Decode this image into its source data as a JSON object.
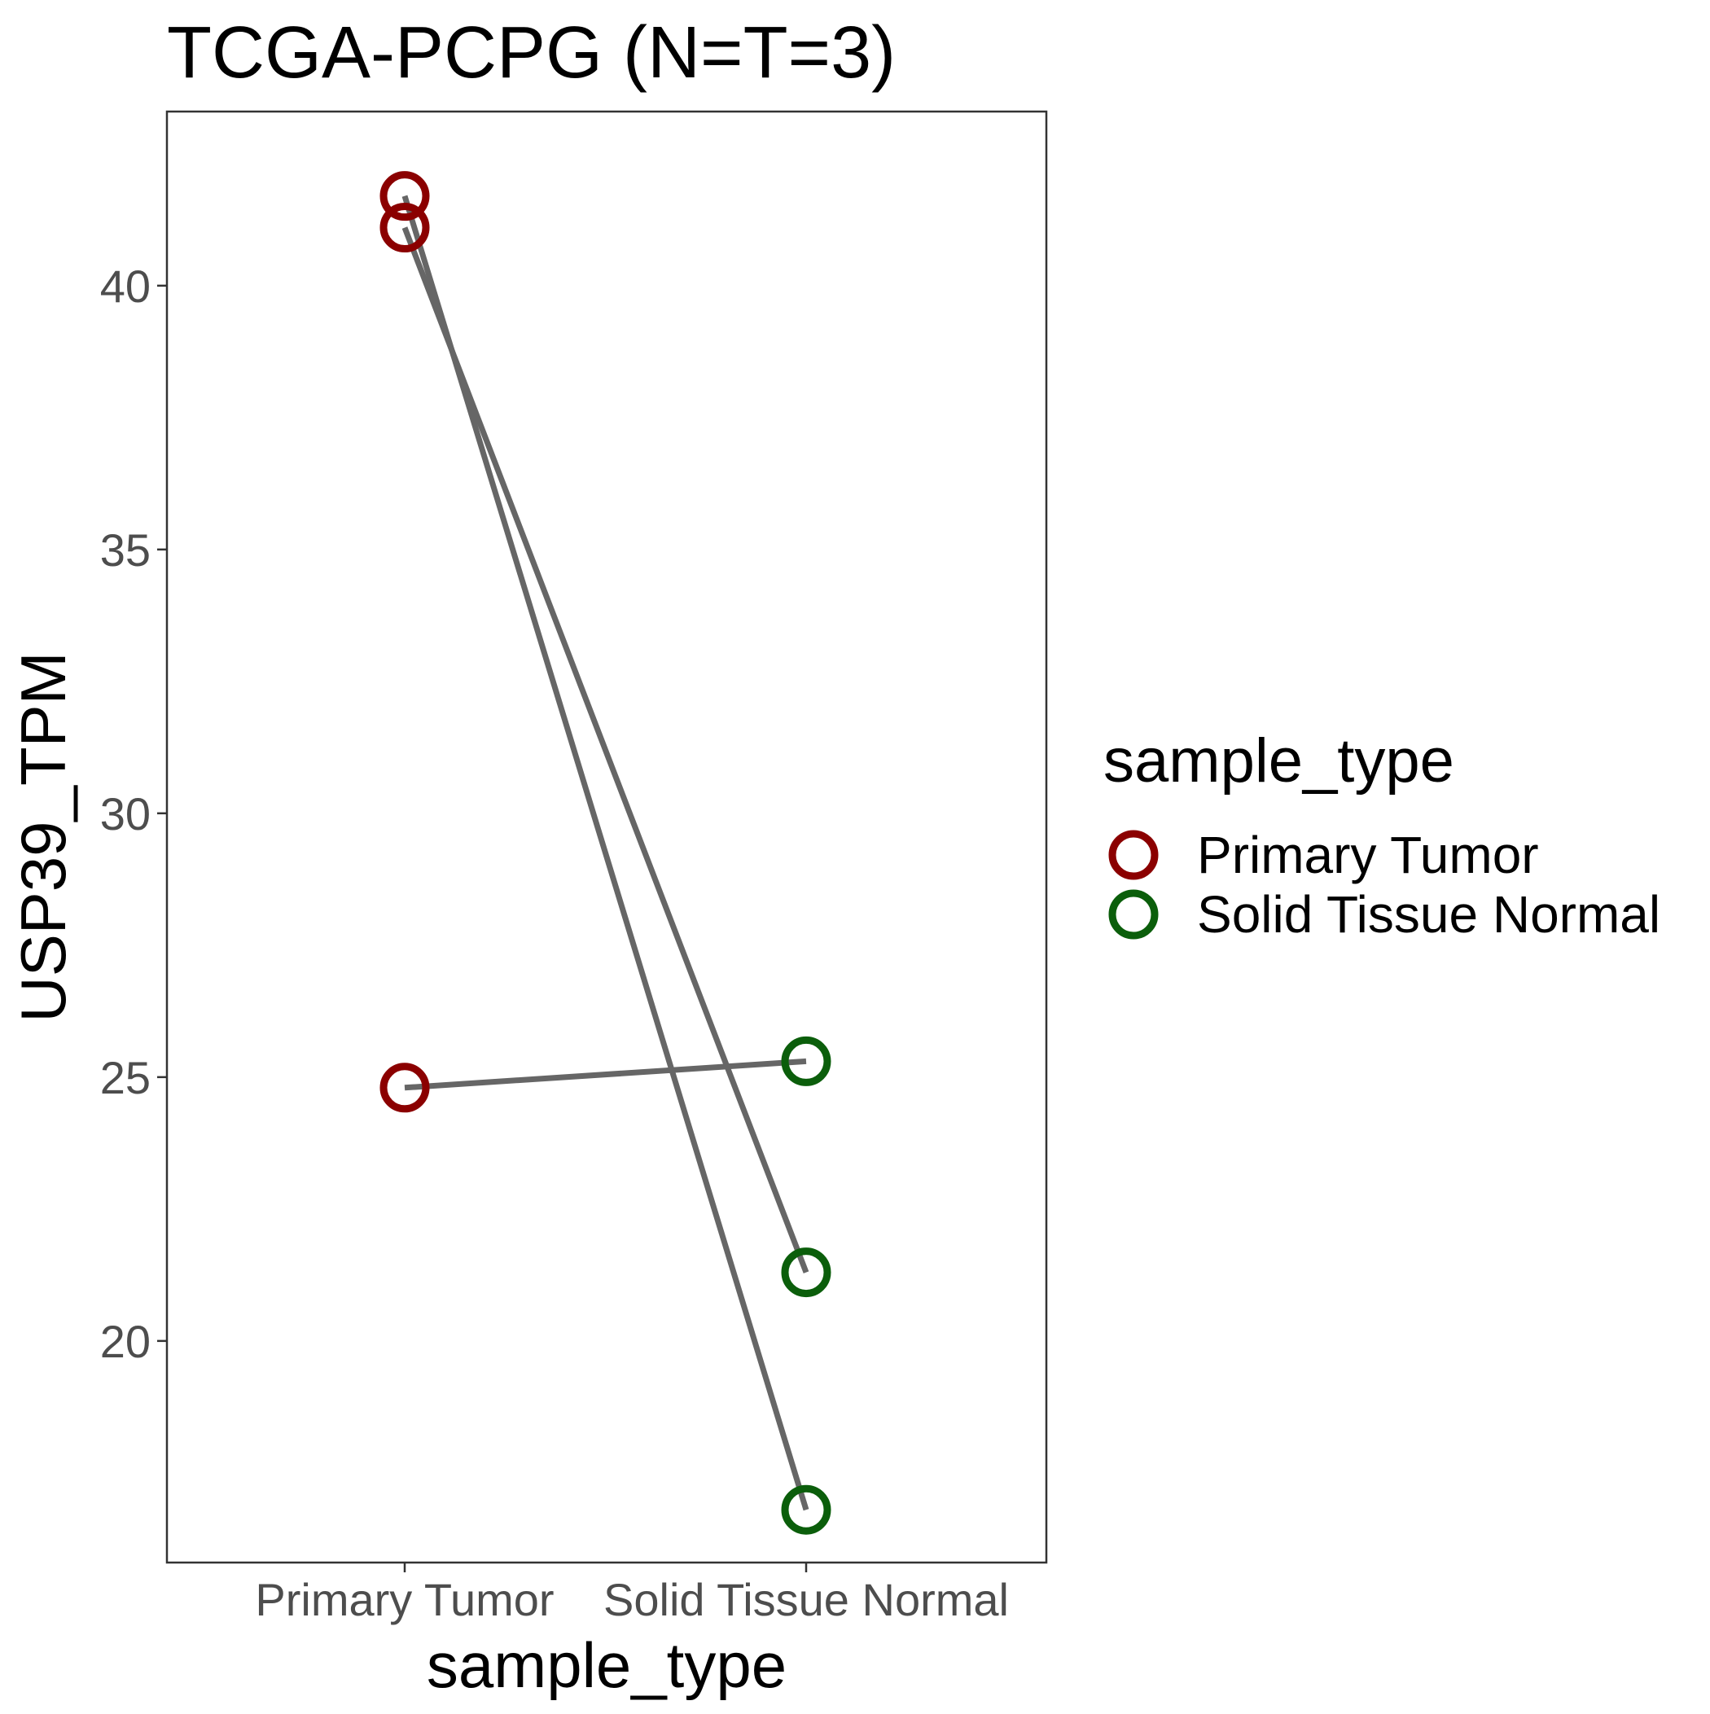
{
  "chart_data": {
    "type": "line",
    "title": "TCGA-PCPG  (N=T=3)",
    "xlabel": "sample_type",
    "ylabel": "USP39_TPM",
    "categories": [
      "Primary Tumor",
      "Solid Tissue Normal"
    ],
    "ylim": [
      15.8,
      43.3
    ],
    "yticks": [
      20,
      25,
      30,
      35,
      40
    ],
    "grid": false,
    "pairs": [
      {
        "values": [
          41.7,
          16.8
        ]
      },
      {
        "values": [
          41.1,
          21.3
        ]
      },
      {
        "values": [
          24.8,
          25.3
        ]
      }
    ],
    "legend": {
      "title": "sample_type",
      "position": "right",
      "entries": [
        {
          "label": "Primary Tumor",
          "color": "#8b0000"
        },
        {
          "label": "Solid Tissue Normal",
          "color": "#0b5e0b"
        }
      ]
    },
    "line_color": "#666666"
  }
}
